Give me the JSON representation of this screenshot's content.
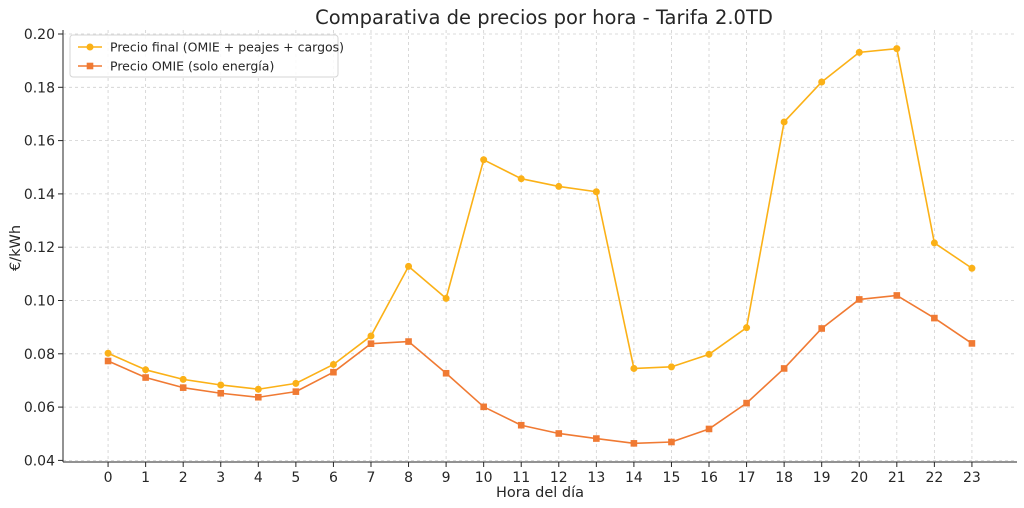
{
  "chart_data": {
    "type": "line",
    "title": "Comparativa de precios por hora - Tarifa 2.0TD",
    "xlabel": "Hora del día",
    "ylabel": "€/kWh",
    "x": [
      0,
      1,
      2,
      3,
      4,
      5,
      6,
      7,
      8,
      9,
      10,
      11,
      12,
      13,
      14,
      15,
      16,
      17,
      18,
      19,
      20,
      21,
      22,
      23
    ],
    "x_tick_labels": [
      "0",
      "1",
      "2",
      "3",
      "4",
      "5",
      "6",
      "7",
      "8",
      "9",
      "10",
      "11",
      "12",
      "13",
      "14",
      "15",
      "16",
      "17",
      "18",
      "19",
      "20",
      "21",
      "22",
      "23"
    ],
    "y_tick_values": [
      0.04,
      0.06,
      0.08,
      0.1,
      0.12,
      0.14,
      0.16,
      0.18,
      0.2
    ],
    "y_tick_labels": [
      "0.04",
      "0.06",
      "0.08",
      "0.10",
      "0.12",
      "0.14",
      "0.16",
      "0.18",
      "0.20"
    ],
    "xlim": [
      -1.2,
      24.2
    ],
    "ylim": [
      0.0394,
      0.2015
    ],
    "grid": true,
    "legend_position": "top-left",
    "series": [
      {
        "name": "Precio final (OMIE + peajes + cargos)",
        "color": "#fbb117",
        "marker": "circle",
        "values": [
          0.0802,
          0.074,
          0.0704,
          0.0683,
          0.0667,
          0.0689,
          0.076,
          0.0867,
          0.1128,
          0.1008,
          0.1528,
          0.1457,
          0.1428,
          0.1408,
          0.0745,
          0.0751,
          0.0798,
          0.0898,
          0.167,
          0.182,
          0.1931,
          0.1945,
          0.1216,
          0.1121
        ]
      },
      {
        "name": "Precio OMIE (solo energía)",
        "color": "#f07a33",
        "marker": "square",
        "values": [
          0.0773,
          0.0711,
          0.0673,
          0.0652,
          0.0637,
          0.0658,
          0.0731,
          0.0838,
          0.0846,
          0.0727,
          0.0601,
          0.0532,
          0.0501,
          0.0482,
          0.0464,
          0.0469,
          0.0518,
          0.0615,
          0.0745,
          0.0895,
          0.1004,
          0.1019,
          0.0934,
          0.0839
        ]
      }
    ]
  }
}
